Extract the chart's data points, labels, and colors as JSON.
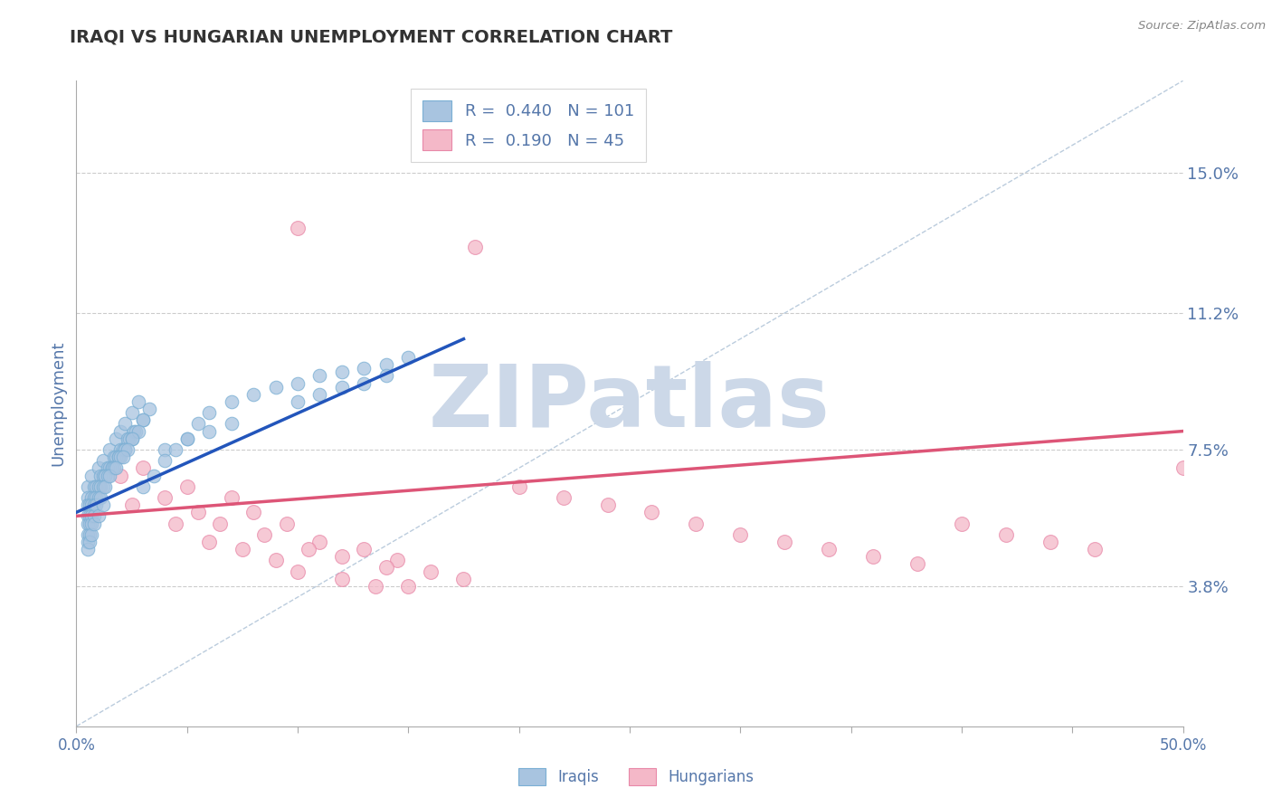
{
  "title": "IRAQI VS HUNGARIAN UNEMPLOYMENT CORRELATION CHART",
  "source": "Source: ZipAtlas.com",
  "ylabel": "Unemployment",
  "xmin": 0.0,
  "xmax": 0.5,
  "ymin": 0.0,
  "ymax": 0.175,
  "yticks": [
    0.038,
    0.075,
    0.112,
    0.15
  ],
  "ytick_labels": [
    "3.8%",
    "7.5%",
    "11.2%",
    "15.0%"
  ],
  "xticks": [
    0.0,
    0.05,
    0.1,
    0.15,
    0.2,
    0.25,
    0.3,
    0.35,
    0.4,
    0.45,
    0.5
  ],
  "xtick_labels": [
    "0.0%",
    "",
    "",
    "",
    "",
    "",
    "",
    "",
    "",
    "",
    "50.0%"
  ],
  "legend_iraqis_R": "0.440",
  "legend_iraqis_N": "101",
  "legend_hungarians_R": "0.190",
  "legend_hungarians_N": "45",
  "iraqis_color": "#a8c4e0",
  "iraqis_edge_color": "#7aafd4",
  "hungarians_color": "#f4b8c8",
  "hungarians_edge_color": "#e888a8",
  "iraqis_line_color": "#2255bb",
  "hungarians_line_color": "#dd5577",
  "diag_line_color": "#bbccdd",
  "grid_color": "#cccccc",
  "axis_label_color": "#5577aa",
  "watermark": "ZIPatlas",
  "watermark_color": "#ccd8e8",
  "background_color": "#ffffff",
  "iraqis_scatter_x": [
    0.005,
    0.007,
    0.01,
    0.012,
    0.015,
    0.018,
    0.02,
    0.022,
    0.025,
    0.028,
    0.005,
    0.008,
    0.011,
    0.014,
    0.017,
    0.02,
    0.023,
    0.026,
    0.03,
    0.033,
    0.005,
    0.007,
    0.009,
    0.012,
    0.015,
    0.018,
    0.021,
    0.024,
    0.027,
    0.03,
    0.005,
    0.006,
    0.008,
    0.01,
    0.013,
    0.016,
    0.019,
    0.022,
    0.025,
    0.028,
    0.005,
    0.006,
    0.007,
    0.009,
    0.011,
    0.013,
    0.016,
    0.019,
    0.022,
    0.025,
    0.005,
    0.006,
    0.007,
    0.008,
    0.01,
    0.012,
    0.014,
    0.017,
    0.02,
    0.023,
    0.005,
    0.006,
    0.007,
    0.008,
    0.009,
    0.011,
    0.013,
    0.015,
    0.018,
    0.021,
    0.005,
    0.006,
    0.007,
    0.008,
    0.01,
    0.012,
    0.04,
    0.05,
    0.06,
    0.07,
    0.03,
    0.035,
    0.04,
    0.045,
    0.05,
    0.055,
    0.06,
    0.07,
    0.08,
    0.09,
    0.1,
    0.11,
    0.12,
    0.13,
    0.14,
    0.15,
    0.1,
    0.11,
    0.12,
    0.13,
    0.14
  ],
  "iraqis_scatter_y": [
    0.065,
    0.068,
    0.07,
    0.072,
    0.075,
    0.078,
    0.08,
    0.082,
    0.085,
    0.088,
    0.062,
    0.065,
    0.068,
    0.07,
    0.073,
    0.075,
    0.078,
    0.08,
    0.083,
    0.086,
    0.06,
    0.062,
    0.065,
    0.068,
    0.07,
    0.073,
    0.075,
    0.078,
    0.08,
    0.083,
    0.057,
    0.06,
    0.062,
    0.065,
    0.068,
    0.07,
    0.073,
    0.075,
    0.078,
    0.08,
    0.055,
    0.057,
    0.06,
    0.062,
    0.065,
    0.068,
    0.07,
    0.073,
    0.075,
    0.078,
    0.052,
    0.055,
    0.057,
    0.06,
    0.062,
    0.065,
    0.068,
    0.07,
    0.073,
    0.075,
    0.05,
    0.052,
    0.055,
    0.057,
    0.06,
    0.062,
    0.065,
    0.068,
    0.07,
    0.073,
    0.048,
    0.05,
    0.052,
    0.055,
    0.057,
    0.06,
    0.075,
    0.078,
    0.08,
    0.082,
    0.065,
    0.068,
    0.072,
    0.075,
    0.078,
    0.082,
    0.085,
    0.088,
    0.09,
    0.092,
    0.093,
    0.095,
    0.096,
    0.097,
    0.098,
    0.1,
    0.088,
    0.09,
    0.092,
    0.093,
    0.095
  ],
  "hungarians_scatter_x": [
    0.01,
    0.025,
    0.045,
    0.06,
    0.075,
    0.09,
    0.1,
    0.12,
    0.135,
    0.15,
    0.03,
    0.05,
    0.07,
    0.08,
    0.095,
    0.11,
    0.13,
    0.145,
    0.16,
    0.175,
    0.02,
    0.04,
    0.055,
    0.065,
    0.085,
    0.105,
    0.12,
    0.14,
    0.2,
    0.22,
    0.24,
    0.26,
    0.28,
    0.3,
    0.32,
    0.34,
    0.36,
    0.38,
    0.4,
    0.42,
    0.44,
    0.46,
    0.1,
    0.18,
    0.5
  ],
  "hungarians_scatter_y": [
    0.065,
    0.06,
    0.055,
    0.05,
    0.048,
    0.045,
    0.042,
    0.04,
    0.038,
    0.038,
    0.07,
    0.065,
    0.062,
    0.058,
    0.055,
    0.05,
    0.048,
    0.045,
    0.042,
    0.04,
    0.068,
    0.062,
    0.058,
    0.055,
    0.052,
    0.048,
    0.046,
    0.043,
    0.065,
    0.062,
    0.06,
    0.058,
    0.055,
    0.052,
    0.05,
    0.048,
    0.046,
    0.044,
    0.055,
    0.052,
    0.05,
    0.048,
    0.135,
    0.13,
    0.07
  ],
  "iraqis_line_x0": 0.0,
  "iraqis_line_x1": 0.175,
  "iraqis_line_y0": 0.058,
  "iraqis_line_y1": 0.105,
  "hungarians_line_x0": 0.0,
  "hungarians_line_x1": 0.5,
  "hungarians_line_y0": 0.057,
  "hungarians_line_y1": 0.08,
  "diag_line_x0": 0.0,
  "diag_line_x1": 0.5,
  "diag_line_y0": 0.0,
  "diag_line_y1": 0.175
}
